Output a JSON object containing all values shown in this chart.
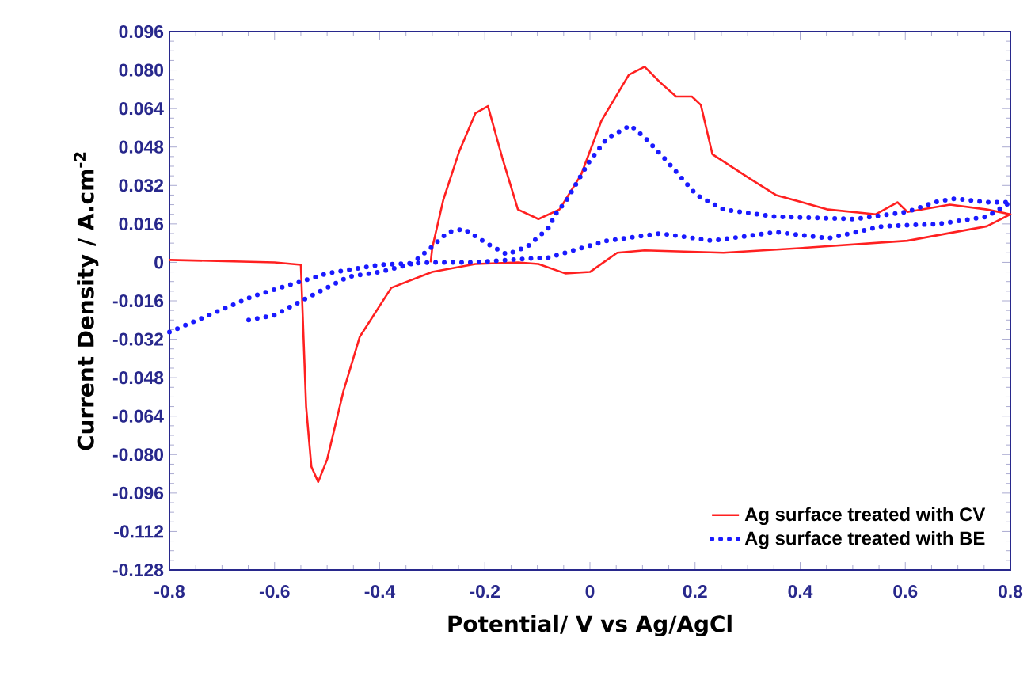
{
  "chart_data": {
    "type": "line",
    "xlabel": "Potential/ V vs Ag/AgCl",
    "ylabel": "Current Density / A.cm$^{-2}$",
    "xlim": [
      -0.8,
      0.8
    ],
    "ylim": [
      -0.128,
      0.096
    ],
    "xticks": [
      -0.8,
      -0.6,
      -0.4,
      -0.2,
      0,
      0.2,
      0.4,
      0.6,
      0.8
    ],
    "yticks": [
      -0.128,
      -0.112,
      -0.096,
      {
        "value": -0.08,
        "label": "-0.080"
      },
      -0.064,
      -0.048,
      -0.032,
      -0.016,
      0,
      0.016,
      0.032,
      0.048,
      0.064,
      {
        "value": 0.08,
        "label": "0.080"
      },
      0.096
    ],
    "legend": "bottom right",
    "series": [
      {
        "name": "Ag surface treated with CV",
        "color": "#ff2020",
        "line_style": "solid",
        "x": [
          -0.8,
          -0.7,
          -0.6,
          -0.55,
          -0.54,
          -0.53,
          -0.517,
          -0.5,
          -0.469,
          -0.438,
          -0.378,
          -0.3,
          -0.218,
          -0.137,
          -0.098,
          -0.047,
          0.0,
          0.052,
          0.104,
          0.254,
          0.405,
          0.604,
          0.755,
          0.8,
          0.755,
          0.685,
          0.604,
          0.585,
          0.544,
          0.453,
          0.354,
          0.303,
          0.233,
          0.211,
          0.194,
          0.164,
          0.134,
          0.104,
          0.074,
          0.022,
          -0.017,
          -0.058,
          -0.098,
          -0.137,
          -0.167,
          -0.194,
          -0.218,
          -0.249,
          -0.279,
          -0.3,
          -0.303
        ],
        "values": [
          0.001,
          0.0005,
          0.0,
          -0.001,
          -0.06,
          -0.085,
          -0.0914,
          -0.082,
          -0.0536,
          -0.031,
          -0.0106,
          -0.004,
          -0.0007,
          0.0,
          -0.0007,
          -0.0046,
          -0.004,
          0.004,
          0.005,
          0.004,
          0.006,
          0.009,
          0.015,
          0.02,
          0.022,
          0.024,
          0.021,
          0.025,
          0.02,
          0.022,
          0.028,
          0.035,
          0.045,
          0.0655,
          0.069,
          0.069,
          0.0748,
          0.0814,
          0.078,
          0.059,
          0.0364,
          0.022,
          0.018,
          0.022,
          0.0437,
          0.065,
          0.062,
          0.046,
          0.026,
          0.006,
          0.0
        ]
      },
      {
        "name": "Ag surface treated with BE",
        "color": "#1a1aff",
        "line_style": "dotted",
        "x": [
          -0.8,
          -0.64,
          -0.5,
          -0.4,
          -0.3,
          -0.218,
          -0.137,
          -0.077,
          -0.047,
          0.032,
          0.134,
          0.233,
          0.354,
          0.453,
          0.556,
          0.664,
          0.755,
          0.8,
          0.755,
          0.694,
          0.655,
          0.604,
          0.505,
          0.354,
          0.254,
          0.203,
          0.179,
          0.143,
          0.104,
          0.077,
          0.032,
          -0.002,
          -0.044,
          -0.068,
          -0.077,
          -0.119,
          -0.158,
          -0.197,
          -0.24,
          -0.27,
          -0.3,
          -0.34,
          -0.4,
          -0.46,
          -0.54,
          -0.6,
          -0.65
        ],
        "values": [
          -0.029,
          -0.014,
          -0.0046,
          -0.001,
          0.0,
          0.0,
          0.0013,
          0.002,
          0.004,
          0.009,
          0.012,
          0.009,
          0.0126,
          0.01,
          0.015,
          0.016,
          0.019,
          0.025,
          0.025,
          0.0265,
          0.025,
          0.021,
          0.018,
          0.019,
          0.022,
          0.028,
          0.034,
          0.043,
          0.052,
          0.057,
          0.0515,
          0.0417,
          0.026,
          0.0193,
          0.0146,
          0.0066,
          0.0033,
          0.008,
          0.0139,
          0.0126,
          0.0066,
          -0.0007,
          -0.004,
          -0.006,
          -0.015,
          -0.022,
          -0.024
        ]
      }
    ]
  }
}
